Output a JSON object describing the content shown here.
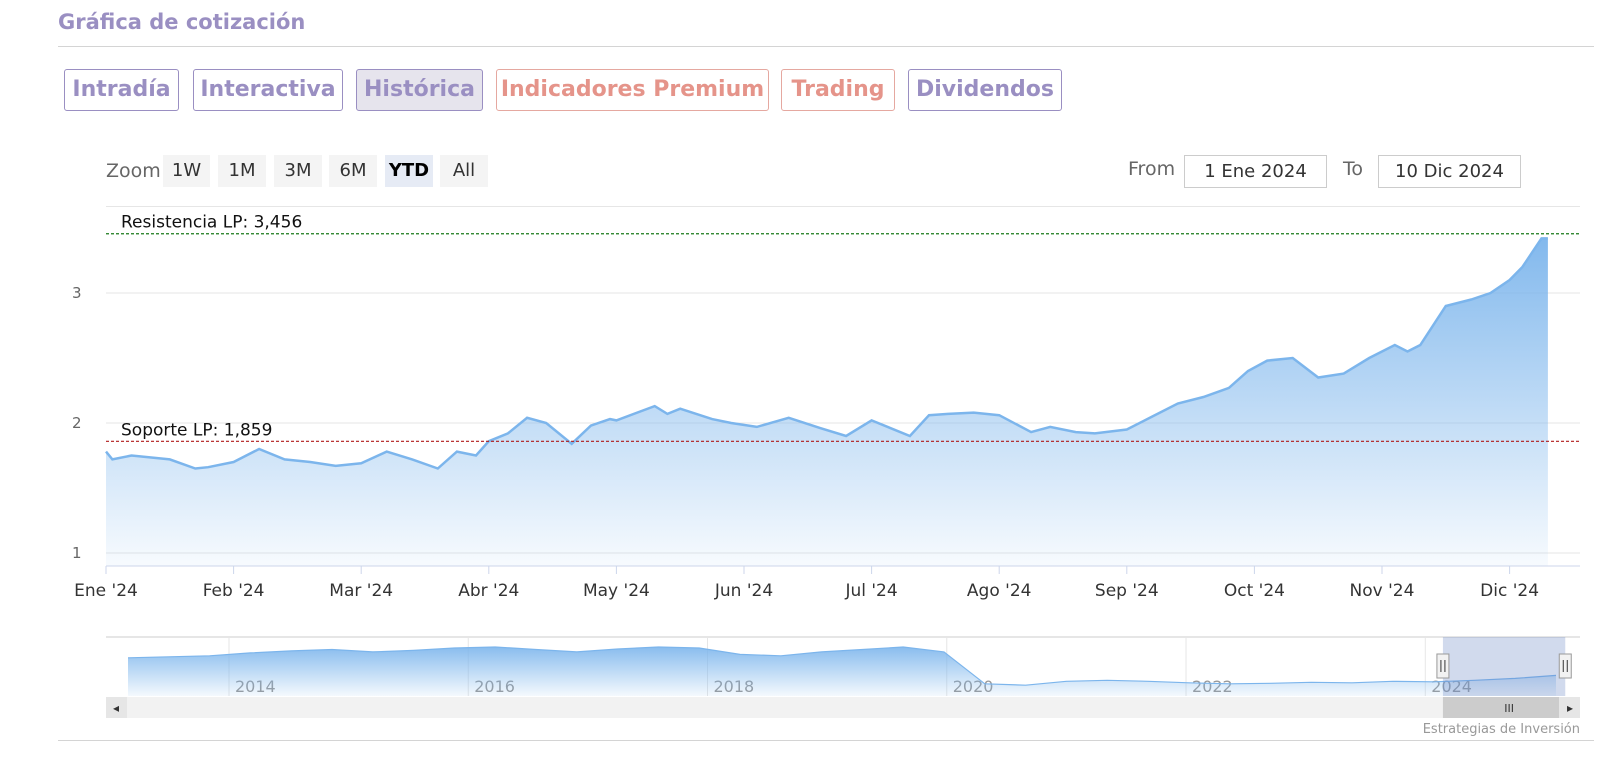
{
  "header": {
    "title": "Gráfica de cotización"
  },
  "tabs": [
    {
      "label": "Intradía",
      "active": false,
      "premium": false
    },
    {
      "label": "Interactiva",
      "active": false,
      "premium": false
    },
    {
      "label": "Histórica",
      "active": true,
      "premium": false
    },
    {
      "label": "Indicadores Premium",
      "active": false,
      "premium": true
    },
    {
      "label": "Trading",
      "active": false,
      "premium": true
    },
    {
      "label": "Dividendos",
      "active": false,
      "premium": false
    }
  ],
  "zoom": {
    "label": "Zoom",
    "buttons": [
      "1W",
      "1M",
      "3M",
      "6M",
      "YTD",
      "All"
    ],
    "selected": "YTD"
  },
  "range": {
    "from_label": "From",
    "from_value": "1 Ene 2024",
    "to_label": "To",
    "to_value": "10 Dic 2024"
  },
  "colors": {
    "accent": "#9a8fc2",
    "premium": "#e5948a",
    "series_line": "#7cb5ec",
    "resistance": "#1a7a1a",
    "support": "#b01a1a"
  },
  "chart_data": {
    "type": "area",
    "y_ticks": [
      1,
      2,
      3
    ],
    "ylim": [
      0.9,
      3.6
    ],
    "x_ticks": [
      "Ene '24",
      "Feb '24",
      "Mar '24",
      "Abr '24",
      "May '24",
      "Jun '24",
      "Jul '24",
      "Ago '24",
      "Sep '24",
      "Oct '24",
      "Nov '24",
      "Dic '24"
    ],
    "x_range_months": [
      0,
      11.3
    ],
    "series": [
      {
        "month_offsets": [
          0,
          0.05,
          0.2,
          0.5,
          0.7,
          0.8,
          1.0,
          1.2,
          1.4,
          1.6,
          1.8,
          2.0,
          2.2,
          2.4,
          2.6,
          2.75,
          2.9,
          3.0,
          3.15,
          3.3,
          3.45,
          3.65,
          3.8,
          3.95,
          4.0,
          4.3,
          4.4,
          4.5,
          4.75,
          4.9,
          5.1,
          5.35,
          5.6,
          5.8,
          6.0,
          6.3,
          6.45,
          6.6,
          6.8,
          7.0,
          7.25,
          7.4,
          7.6,
          7.75,
          8.0,
          8.2,
          8.4,
          8.6,
          8.8,
          8.95,
          9.1,
          9.3,
          9.5,
          9.7,
          9.9,
          10.0,
          10.1,
          10.2,
          10.3,
          10.5,
          10.7,
          10.85,
          11.0,
          11.1,
          11.25,
          11.3
        ],
        "values": [
          1.78,
          1.72,
          1.75,
          1.72,
          1.65,
          1.66,
          1.7,
          1.8,
          1.72,
          1.7,
          1.67,
          1.69,
          1.78,
          1.72,
          1.65,
          1.78,
          1.75,
          1.86,
          1.92,
          2.04,
          2.0,
          1.84,
          1.98,
          2.03,
          2.02,
          2.13,
          2.07,
          2.11,
          2.03,
          2.0,
          1.97,
          2.04,
          1.96,
          1.9,
          2.02,
          1.9,
          2.06,
          2.07,
          2.08,
          2.06,
          1.93,
          1.97,
          1.93,
          1.92,
          1.95,
          2.05,
          2.15,
          2.2,
          2.27,
          2.4,
          2.48,
          2.5,
          2.35,
          2.38,
          2.5,
          2.55,
          2.6,
          2.55,
          2.6,
          2.9,
          2.95,
          3.0,
          3.1,
          3.2,
          3.42,
          3.42
        ]
      }
    ],
    "annotations": [
      {
        "label": "Resistencia LP: 3,456",
        "value": 3.456,
        "kind": "resistance"
      },
      {
        "label": "Soporte LP: 1,859",
        "value": 1.859,
        "kind": "support"
      }
    ],
    "grid": true
  },
  "navigator": {
    "year_labels": [
      "2014",
      "2016",
      "2018",
      "2020",
      "2022",
      "2024"
    ],
    "selection_start_fraction": 0.907,
    "selection_end_fraction": 0.99,
    "values": [
      0.78,
      0.8,
      0.82,
      0.88,
      0.92,
      0.95,
      0.9,
      0.93,
      0.98,
      1.0,
      0.95,
      0.9,
      0.96,
      1.0,
      0.98,
      0.85,
      0.82,
      0.9,
      0.95,
      1.0,
      0.9,
      0.25,
      0.22,
      0.3,
      0.32,
      0.3,
      0.27,
      0.25,
      0.26,
      0.28,
      0.27,
      0.3,
      0.29,
      0.32,
      0.36,
      0.42
    ]
  },
  "scrollbar": {
    "left_arrow": "◂",
    "right_arrow": "▸",
    "grip": "III"
  },
  "credits": "Estrategias de Inversión"
}
